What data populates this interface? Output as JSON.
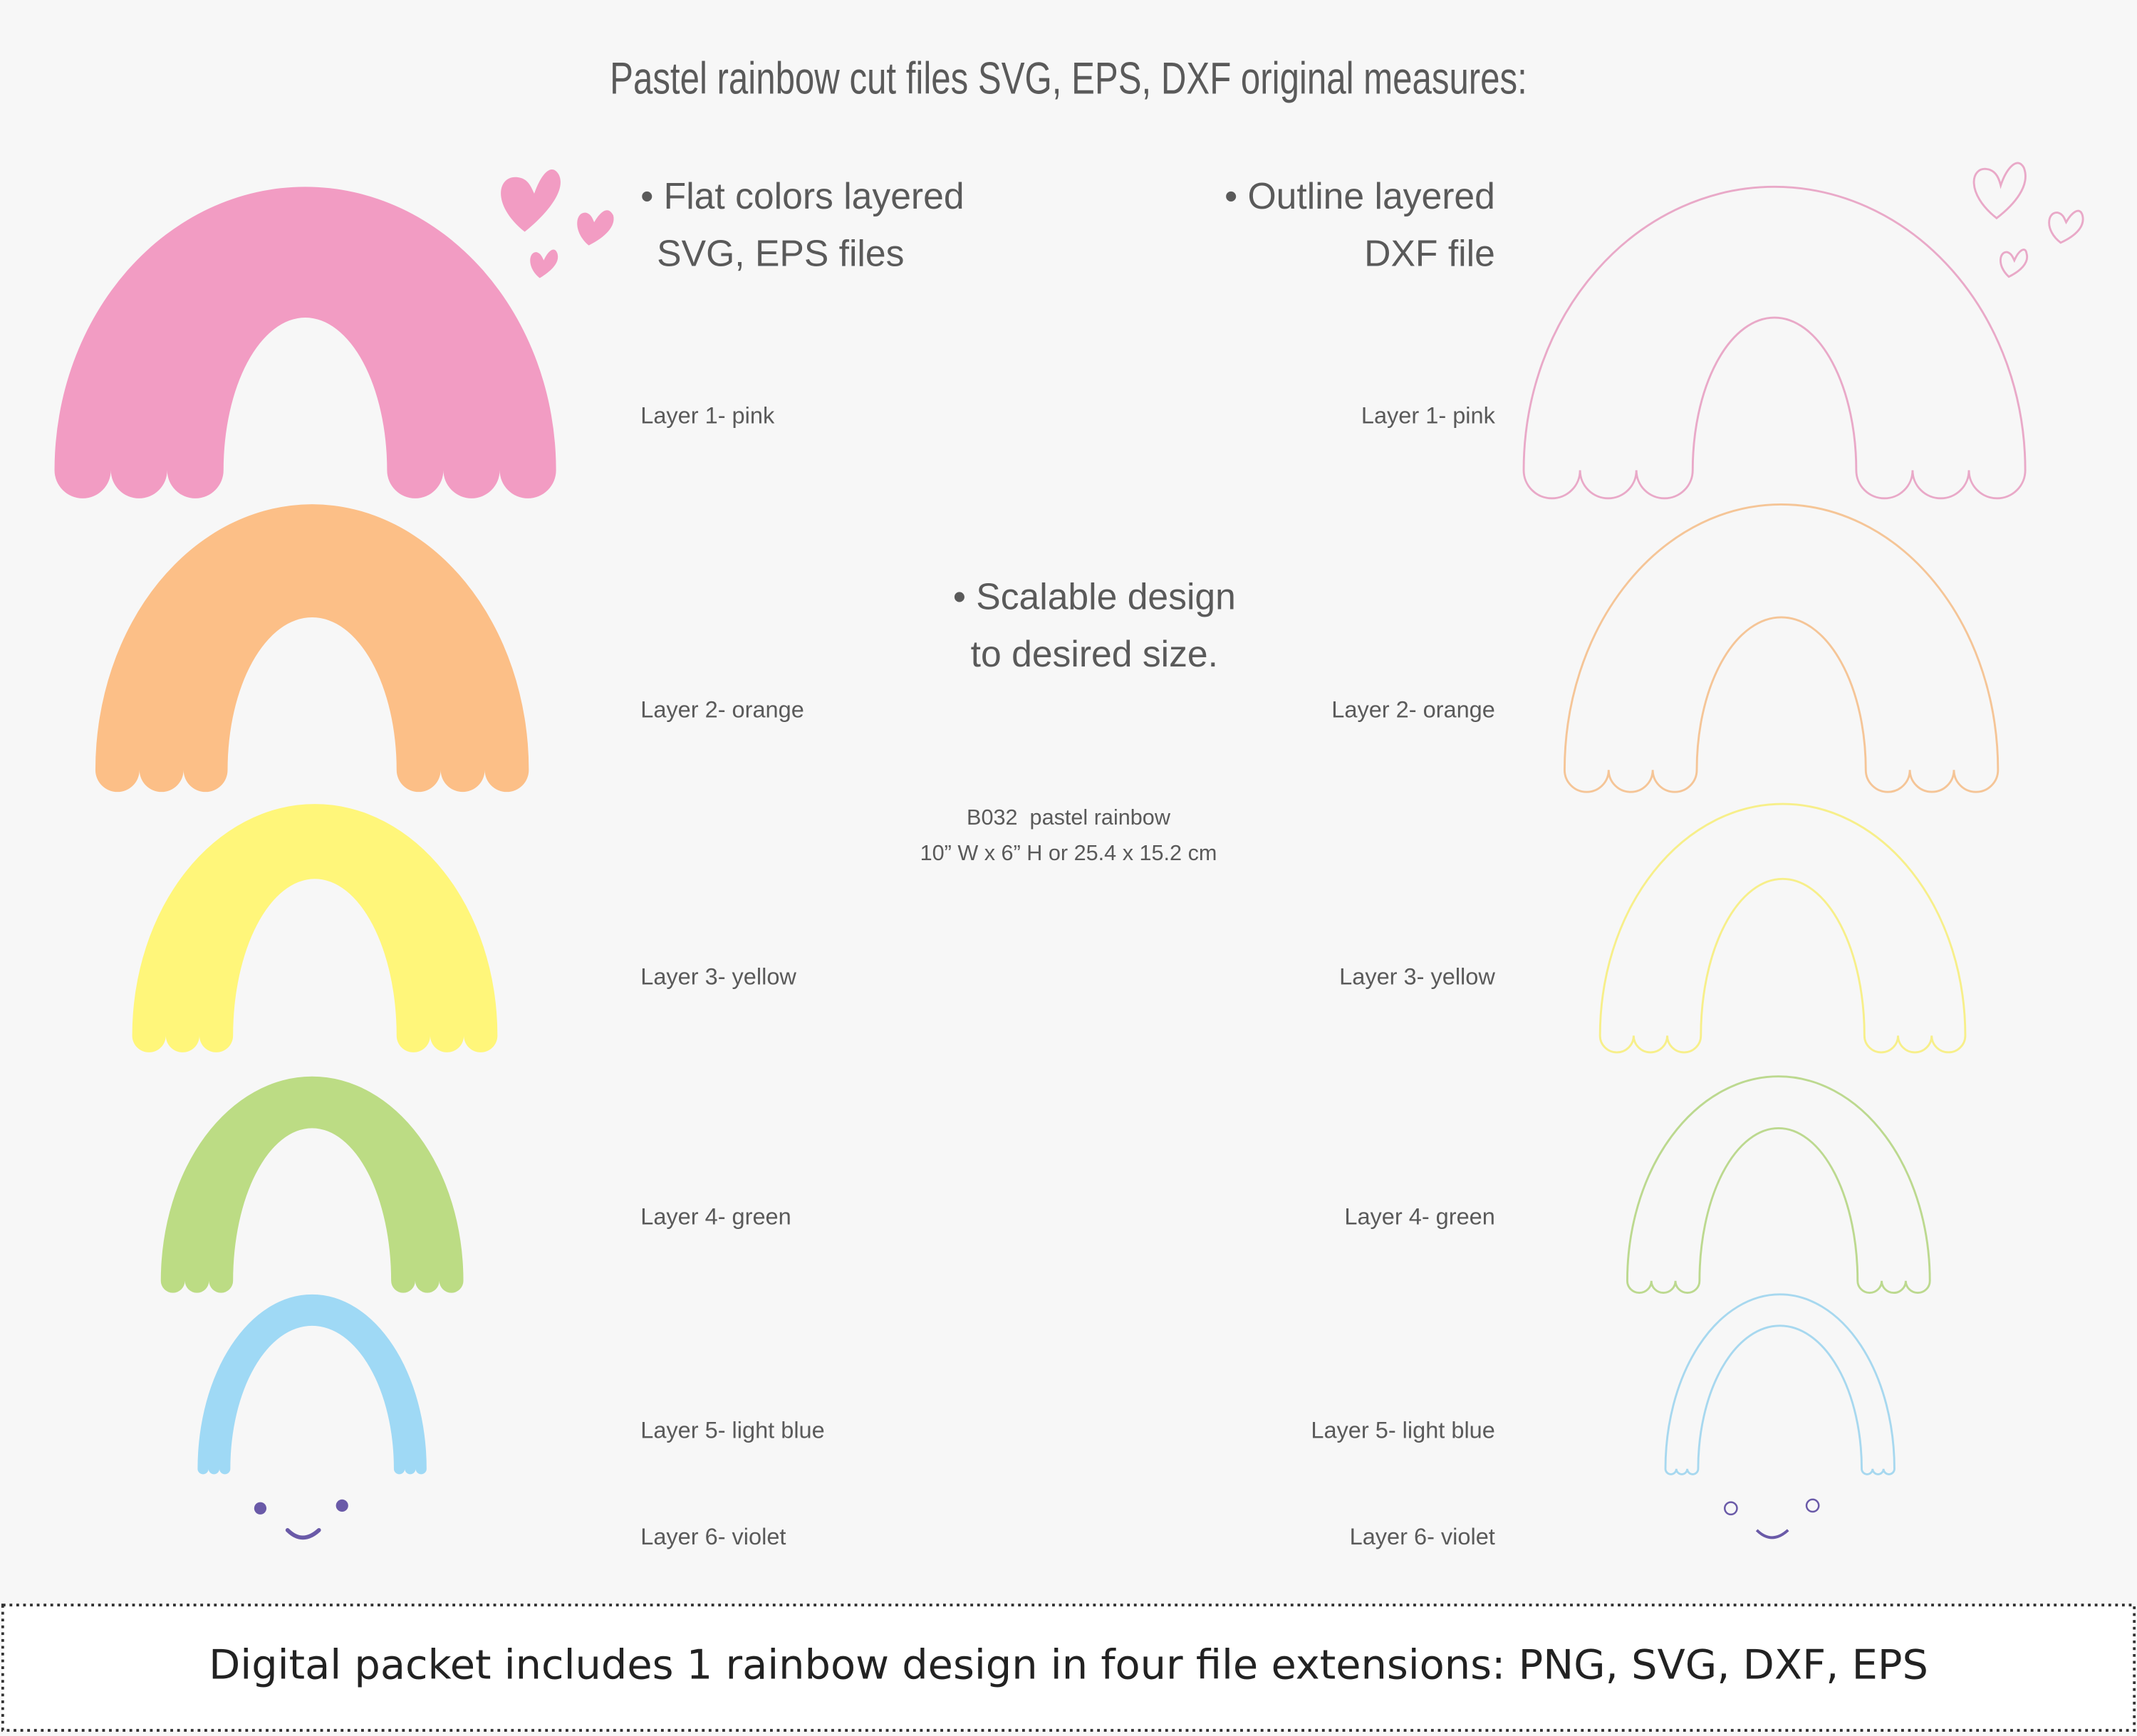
{
  "title": "Pastel rainbow cut files SVG, EPS, DXF original measures:",
  "flat": {
    "lines": [
      "• Flat colors layered",
      "SVG, EPS files"
    ]
  },
  "outline": {
    "lines": [
      "• Outline layered",
      "DXF file"
    ]
  },
  "scalable": {
    "lines": [
      "• Scalable design",
      "to desired size."
    ]
  },
  "product": {
    "code": "B032  pastel rainbow",
    "size": "10” W x 6” H or 25.4 x 15.2 cm"
  },
  "layers": [
    "Layer 1- pink",
    "Layer 2- orange",
    "Layer 3- yellow",
    "Layer 4- green",
    "Layer 5- light blue",
    "Layer 6- violet"
  ],
  "footer": "Digital packet includes 1 rainbow design in four file extensions: PNG, SVG, DXF, EPS"
}
